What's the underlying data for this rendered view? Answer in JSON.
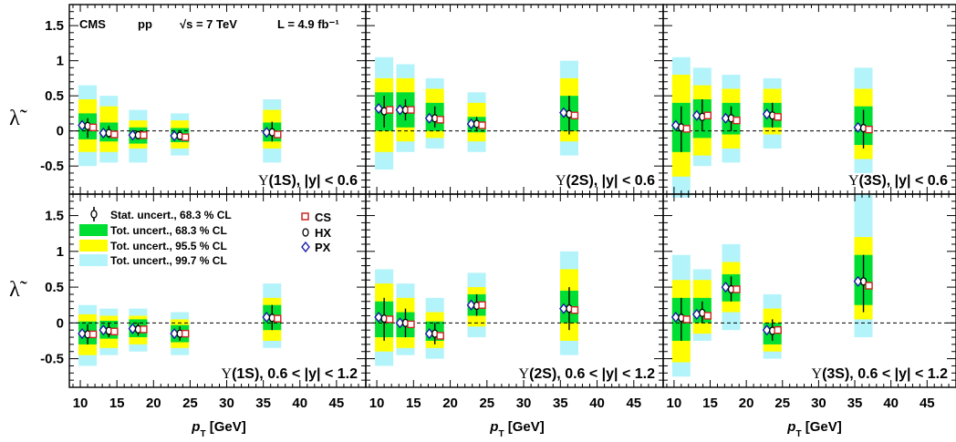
{
  "chart_data": {
    "type": "scatter",
    "info": {
      "experiment": "CMS",
      "system": "pp",
      "energy": "√s = 7 TeV",
      "luminosity": "L = 4.9 fb⁻¹"
    },
    "ylabel": "λ̃",
    "xlabel": "p_T [GeV]",
    "xlim": [
      8.5,
      49
    ],
    "ylim": [
      -0.9,
      1.8
    ],
    "xticks": [
      10,
      15,
      20,
      25,
      30,
      35,
      40,
      45
    ],
    "yticks": [
      -0.5,
      0,
      0.5,
      1,
      1.5
    ],
    "ytick_labels": [
      "-0.5",
      "0",
      "0.5",
      "1",
      "1.5"
    ],
    "reference_line": 0,
    "colors": {
      "band_68": "#00dd33",
      "band_95": "#ffff00",
      "band_997": "#b3f3fa",
      "CS": "#cc2222",
      "HX": "#000000",
      "PX": "#1a1aa6"
    },
    "legend": {
      "stat": "Stat. uncert., 68.3 % CL",
      "tot68": "Tot. uncert., 68.3 % CL",
      "tot95": "Tot. uncert., 95.5 % CL",
      "tot997": "Tot. uncert., 99.7 % CL",
      "frames": [
        "CS",
        "HX",
        "PX"
      ]
    },
    "panels": [
      {
        "state": "Υ(1S)",
        "rapidity": ", |y| < 0.6",
        "points": [
          {
            "pt": 11,
            "PX": 0.08,
            "HX": 0.07,
            "CS": 0.05,
            "stat": [
              -0.1,
              0.18
            ],
            "b68": [
              -0.12,
              0.25
            ],
            "b95": [
              -0.3,
              0.45
            ],
            "b997": [
              -0.5,
              0.65
            ]
          },
          {
            "pt": 13.9,
            "PX": -0.03,
            "HX": -0.03,
            "CS": -0.05,
            "stat": [
              -0.1,
              0.07
            ],
            "b68": [
              -0.15,
              0.12
            ],
            "b95": [
              -0.3,
              0.35
            ],
            "b997": [
              -0.45,
              0.5
            ]
          },
          {
            "pt": 17.9,
            "PX": -0.06,
            "HX": -0.06,
            "CS": -0.06,
            "stat": [
              -0.12,
              0.0
            ],
            "b68": [
              -0.18,
              0.05
            ],
            "b95": [
              -0.25,
              0.15
            ],
            "b997": [
              -0.45,
              0.3
            ]
          },
          {
            "pt": 23.6,
            "PX": -0.07,
            "HX": -0.07,
            "CS": -0.09,
            "stat": [
              -0.13,
              -0.01
            ],
            "b68": [
              -0.16,
              0.04
            ],
            "b95": [
              -0.25,
              0.15
            ],
            "b997": [
              -0.35,
              0.25
            ]
          },
          {
            "pt": 36.2,
            "PX": -0.02,
            "HX": -0.02,
            "CS": -0.05,
            "stat": [
              -0.15,
              0.13
            ],
            "b68": [
              -0.15,
              0.12
            ],
            "b95": [
              -0.25,
              0.3
            ],
            "b997": [
              -0.45,
              0.45
            ]
          }
        ]
      },
      {
        "state": "Υ(2S)",
        "rapidity": ", |y| < 0.6",
        "points": [
          {
            "pt": 11,
            "PX": 0.32,
            "HX": 0.28,
            "CS": 0.3,
            "stat": [
              0.05,
              0.5
            ],
            "b68": [
              0.0,
              0.55
            ],
            "b95": [
              -0.3,
              0.75
            ],
            "b997": [
              -0.55,
              1.05
            ]
          },
          {
            "pt": 13.9,
            "PX": 0.3,
            "HX": 0.3,
            "CS": 0.3,
            "stat": [
              0.15,
              0.45
            ],
            "b68": [
              0.05,
              0.55
            ],
            "b95": [
              -0.15,
              0.75
            ],
            "b997": [
              -0.3,
              0.95
            ]
          },
          {
            "pt": 17.9,
            "PX": 0.18,
            "HX": 0.18,
            "CS": 0.16,
            "stat": [
              0.05,
              0.35
            ],
            "b68": [
              0.0,
              0.4
            ],
            "b95": [
              -0.1,
              0.6
            ],
            "b997": [
              -0.25,
              0.75
            ]
          },
          {
            "pt": 23.6,
            "PX": 0.1,
            "HX": 0.1,
            "CS": 0.08,
            "stat": [
              0.0,
              0.2
            ],
            "b68": [
              -0.02,
              0.2
            ],
            "b95": [
              -0.15,
              0.4
            ],
            "b997": [
              -0.3,
              0.55
            ]
          },
          {
            "pt": 36.2,
            "PX": 0.26,
            "HX": 0.24,
            "CS": 0.22,
            "stat": [
              -0.05,
              0.5
            ],
            "b68": [
              0.0,
              0.5
            ],
            "b95": [
              -0.15,
              0.75
            ],
            "b997": [
              -0.35,
              1.0
            ]
          }
        ]
      },
      {
        "state": "Υ(3S)",
        "rapidity": ", |y| < 0.6",
        "points": [
          {
            "pt": 11,
            "PX": 0.08,
            "HX": 0.05,
            "CS": 0.03,
            "stat": [
              -0.3,
              0.35
            ],
            "b68": [
              -0.3,
              0.4
            ],
            "b95": [
              -0.65,
              0.8
            ],
            "b997": [
              -0.95,
              1.05
            ]
          },
          {
            "pt": 13.9,
            "PX": 0.22,
            "HX": 0.2,
            "CS": 0.22,
            "stat": [
              0.0,
              0.45
            ],
            "b68": [
              -0.1,
              0.45
            ],
            "b95": [
              -0.35,
              0.65
            ],
            "b997": [
              -0.5,
              0.9
            ]
          },
          {
            "pt": 17.9,
            "PX": 0.18,
            "HX": 0.18,
            "CS": 0.15,
            "stat": [
              0.0,
              0.35
            ],
            "b68": [
              -0.05,
              0.4
            ],
            "b95": [
              -0.25,
              0.6
            ],
            "b997": [
              -0.45,
              0.8
            ]
          },
          {
            "pt": 23.6,
            "PX": 0.24,
            "HX": 0.22,
            "CS": 0.2,
            "stat": [
              0.05,
              0.4
            ],
            "b68": [
              0.05,
              0.4
            ],
            "b95": [
              -0.05,
              0.6
            ],
            "b997": [
              -0.25,
              0.75
            ]
          },
          {
            "pt": 36.2,
            "PX": 0.05,
            "HX": 0.04,
            "CS": 0.02,
            "stat": [
              -0.25,
              0.3
            ],
            "b68": [
              -0.2,
              0.35
            ],
            "b95": [
              -0.4,
              0.6
            ],
            "b997": [
              -0.6,
              0.9
            ]
          }
        ]
      },
      {
        "state": "Υ(1S)",
        "rapidity": ", 0.6 < |y| < 1.2",
        "points": [
          {
            "pt": 11,
            "PX": -0.15,
            "HX": -0.16,
            "CS": -0.16,
            "stat": [
              -0.3,
              -0.02
            ],
            "b68": [
              -0.3,
              0.02
            ],
            "b95": [
              -0.45,
              0.12
            ],
            "b997": [
              -0.6,
              0.25
            ]
          },
          {
            "pt": 13.9,
            "PX": -0.1,
            "HX": -0.11,
            "CS": -0.12,
            "stat": [
              -0.2,
              0.0
            ],
            "b68": [
              -0.22,
              0.03
            ],
            "b95": [
              -0.35,
              0.1
            ],
            "b997": [
              -0.45,
              0.2
            ]
          },
          {
            "pt": 17.9,
            "PX": -0.08,
            "HX": -0.09,
            "CS": -0.09,
            "stat": [
              -0.18,
              0.0
            ],
            "b68": [
              -0.2,
              0.05
            ],
            "b95": [
              -0.3,
              0.1
            ],
            "b997": [
              -0.4,
              0.2
            ]
          },
          {
            "pt": 23.6,
            "PX": -0.15,
            "HX": -0.15,
            "CS": -0.15,
            "stat": [
              -0.25,
              -0.05
            ],
            "b68": [
              -0.27,
              -0.03
            ],
            "b95": [
              -0.35,
              0.05
            ],
            "b997": [
              -0.45,
              0.15
            ]
          },
          {
            "pt": 36.2,
            "PX": 0.08,
            "HX": 0.07,
            "CS": 0.06,
            "stat": [
              -0.1,
              0.25
            ],
            "b68": [
              -0.1,
              0.25
            ],
            "b95": [
              -0.25,
              0.35
            ],
            "b997": [
              -0.35,
              0.55
            ]
          }
        ]
      },
      {
        "state": "Υ(2S)",
        "rapidity": ", 0.6 < |y| < 1.2",
        "points": [
          {
            "pt": 11,
            "PX": 0.08,
            "HX": 0.06,
            "CS": 0.05,
            "stat": [
              -0.25,
              0.35
            ],
            "b68": [
              -0.2,
              0.3
            ],
            "b95": [
              -0.4,
              0.55
            ],
            "b997": [
              -0.6,
              0.75
            ]
          },
          {
            "pt": 13.9,
            "PX": 0.0,
            "HX": 0.0,
            "CS": -0.02,
            "stat": [
              -0.2,
              0.2
            ],
            "b68": [
              -0.2,
              0.15
            ],
            "b95": [
              -0.35,
              0.35
            ],
            "b997": [
              -0.45,
              0.55
            ]
          },
          {
            "pt": 17.9,
            "PX": -0.15,
            "HX": -0.15,
            "CS": -0.18,
            "stat": [
              -0.3,
              0.0
            ],
            "b68": [
              -0.25,
              0.02
            ],
            "b95": [
              -0.35,
              0.15
            ],
            "b997": [
              -0.5,
              0.35
            ]
          },
          {
            "pt": 23.6,
            "PX": 0.25,
            "HX": 0.24,
            "CS": 0.25,
            "stat": [
              0.1,
              0.4
            ],
            "b68": [
              0.1,
              0.4
            ],
            "b95": [
              -0.05,
              0.5
            ],
            "b997": [
              -0.2,
              0.7
            ]
          },
          {
            "pt": 36.2,
            "PX": 0.2,
            "HX": 0.2,
            "CS": 0.18,
            "stat": [
              -0.1,
              0.5
            ],
            "b68": [
              0.0,
              0.45
            ],
            "b95": [
              -0.25,
              0.75
            ],
            "b997": [
              -0.45,
              1.0
            ]
          }
        ]
      },
      {
        "state": "Υ(3S)",
        "rapidity": ", 0.6 < |y| < 1.2",
        "points": [
          {
            "pt": 11,
            "PX": 0.08,
            "HX": 0.07,
            "CS": 0.05,
            "stat": [
              -0.25,
              0.35
            ],
            "b68": [
              -0.25,
              0.35
            ],
            "b95": [
              -0.55,
              0.6
            ],
            "b997": [
              -0.75,
              0.95
            ]
          },
          {
            "pt": 13.9,
            "PX": 0.12,
            "HX": 0.14,
            "CS": 0.1,
            "stat": [
              0.0,
              0.3
            ],
            "b68": [
              0.0,
              0.35
            ],
            "b95": [
              -0.15,
              0.6
            ],
            "b997": [
              -0.25,
              0.75
            ]
          },
          {
            "pt": 17.9,
            "PX": 0.5,
            "HX": 0.47,
            "CS": 0.47,
            "stat": [
              0.3,
              0.65
            ],
            "b68": [
              0.3,
              0.68
            ],
            "b95": [
              0.15,
              0.85
            ],
            "b997": [
              -0.1,
              1.1
            ]
          },
          {
            "pt": 23.6,
            "PX": -0.1,
            "HX": -0.11,
            "CS": -0.1,
            "stat": [
              -0.25,
              0.05
            ],
            "b68": [
              -0.3,
              0.0
            ],
            "b95": [
              -0.4,
              0.2
            ],
            "b997": [
              -0.5,
              0.4
            ]
          },
          {
            "pt": 36.2,
            "PX": 0.58,
            "HX": 0.58,
            "CS": 0.52,
            "stat": [
              0.15,
              0.95
            ],
            "b68": [
              0.25,
              0.95
            ],
            "b95": [
              0.05,
              1.2
            ],
            "b997": [
              -0.2,
              1.8
            ]
          }
        ]
      }
    ]
  }
}
